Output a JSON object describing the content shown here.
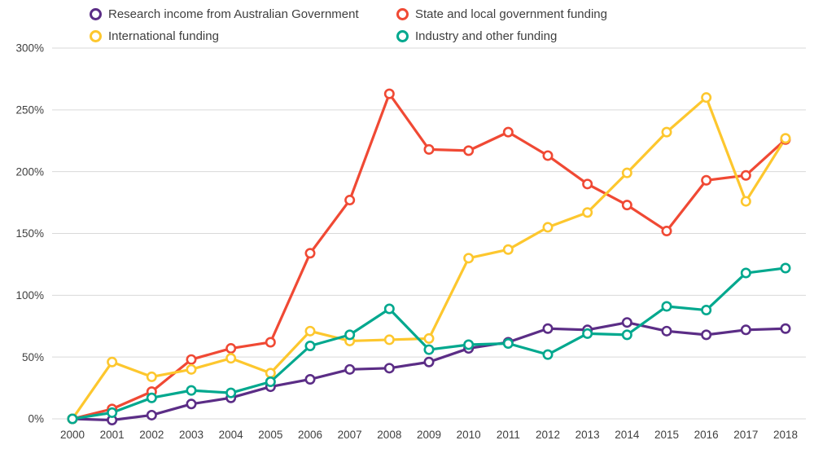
{
  "chart_data": {
    "type": "line",
    "title": "",
    "xlabel": "",
    "ylabel": "",
    "x": [
      2000,
      2001,
      2002,
      2003,
      2004,
      2005,
      2006,
      2007,
      2008,
      2009,
      2010,
      2011,
      2012,
      2013,
      2014,
      2015,
      2016,
      2017,
      2018
    ],
    "series": [
      {
        "name": "Research income from Australian Government",
        "color": "#5b2d86",
        "values": [
          0,
          -1,
          3,
          12,
          17,
          26,
          32,
          40,
          41,
          46,
          57,
          62,
          73,
          72,
          78,
          71,
          68,
          72,
          73
        ]
      },
      {
        "name": "State and local government funding",
        "color": "#f04934",
        "values": [
          0,
          8,
          22,
          48,
          57,
          62,
          134,
          177,
          263,
          218,
          217,
          232,
          213,
          190,
          173,
          152,
          193,
          197,
          226
        ]
      },
      {
        "name": "International funding",
        "color": "#fdc72e",
        "values": [
          0,
          46,
          34,
          40,
          49,
          37,
          71,
          63,
          64,
          65,
          130,
          137,
          155,
          167,
          199,
          232,
          260,
          176,
          227
        ]
      },
      {
        "name": "Industry and other funding",
        "color": "#00a88e",
        "values": [
          0,
          5,
          17,
          23,
          21,
          30,
          59,
          68,
          89,
          56,
          60,
          61,
          52,
          69,
          68,
          91,
          88,
          118,
          122
        ]
      }
    ],
    "ylim": [
      0,
      300
    ],
    "ytick_values": [
      0,
      50,
      100,
      150,
      200,
      250,
      300
    ],
    "ytick_labels": [
      "0%",
      "50%",
      "100%",
      "150%",
      "200%",
      "250%",
      "300%"
    ],
    "grid": true,
    "grid_color": "#d9d9d9",
    "axis_text_color": "#404040",
    "legend_position": "top"
  }
}
